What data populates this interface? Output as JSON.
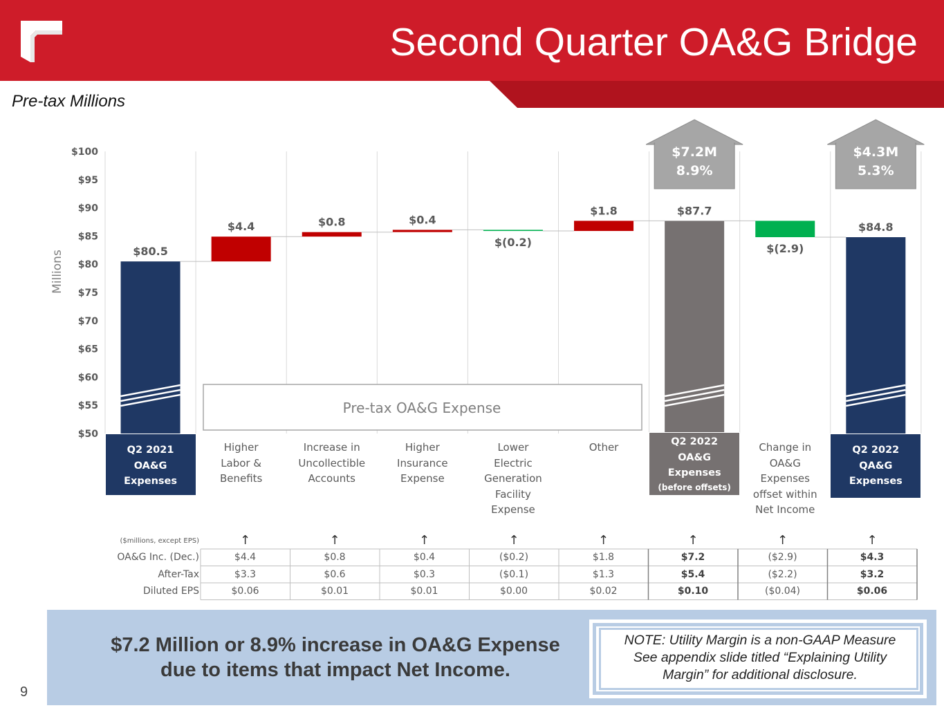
{
  "header": {
    "title": "Second Quarter OA&G Bridge"
  },
  "subtitle": "Pre-tax Millions",
  "colors": {
    "header_red": "#ce1c29",
    "navy": "#1f3864",
    "gray_bar": "#767171",
    "red_bar": "#c00000",
    "green_bar": "#00b050",
    "gray_box": "#a6a6a6",
    "bottom_band": "#b8cce4"
  },
  "chart_data": {
    "type": "waterfall",
    "title": "Second Quarter OA&G Bridge",
    "ylabel": "Millions",
    "ylim": [
      50,
      100
    ],
    "yticks": [
      50,
      55,
      60,
      65,
      70,
      75,
      80,
      85,
      90,
      95,
      100
    ],
    "ytick_labels": [
      "$50",
      "$55",
      "$60",
      "$65",
      "$70",
      "$75",
      "$80",
      "$85",
      "$90",
      "$95",
      "$100"
    ],
    "categories": [
      "Q2 2021\nOA&G\nExpenses",
      "Higher\nLabor &\nBenefits",
      "Increase in\nUncollectible\nAccounts",
      "Higher\nInsurance\nExpense",
      "Lower\nElectric\nGeneration\nFacility\nExpense",
      "Other",
      "Q2 2022\nOA&G\nExpenses",
      "Change in\nOA&G\nExpenses\noffset within\nNet Income",
      "Q2 2022\nQA&G\nExpenses"
    ],
    "category_note": "(before offsets)",
    "bar_kinds": [
      "total",
      "increase",
      "increase",
      "increase",
      "decrease",
      "increase",
      "total",
      "decrease",
      "total"
    ],
    "values": [
      80.5,
      4.4,
      0.8,
      0.4,
      -0.2,
      1.8,
      87.7,
      -2.9,
      84.8
    ],
    "data_labels": [
      "$80.5",
      "$4.4",
      "$0.8",
      "$0.4",
      "$(0.2)",
      "$1.8",
      "$87.7",
      "$(2.9)",
      "$84.8"
    ],
    "callouts": [
      {
        "bar": 6,
        "line1": "$7.2M",
        "line2": "8.9%"
      },
      {
        "bar": 8,
        "line1": "$4.3M",
        "line2": "5.3%"
      }
    ],
    "annotation": "Pre-tax OA&G Expense"
  },
  "table": {
    "unit_label": "($millions, except EPS)",
    "arrow": "↑",
    "rows": [
      {
        "label": "OA&G Inc. (Dec.)",
        "cells": [
          "$4.4",
          "$0.8",
          "$0.4",
          "($0.2)",
          "$1.8",
          "$7.2",
          "($2.9)",
          "$4.3"
        ]
      },
      {
        "label": "After-Tax",
        "cells": [
          "$3.3",
          "$0.6",
          "$0.3",
          "($0.1)",
          "$1.3",
          "$5.4",
          "($2.2)",
          "$3.2"
        ]
      },
      {
        "label": "Diluted EPS",
        "cells": [
          "$0.06",
          "$0.01",
          "$0.01",
          "$0.00",
          "$0.02",
          "$0.10",
          "($0.04)",
          "$0.06"
        ]
      }
    ]
  },
  "summary": "$7.2 Million or 8.9% increase in OA&G Expense\ndue to items that impact Net Income.",
  "note": "NOTE: Utility Margin is a non-GAAP Measure\nSee appendix slide titled “Explaining Utility\nMargin” for additional disclosure.",
  "page_number": "9"
}
